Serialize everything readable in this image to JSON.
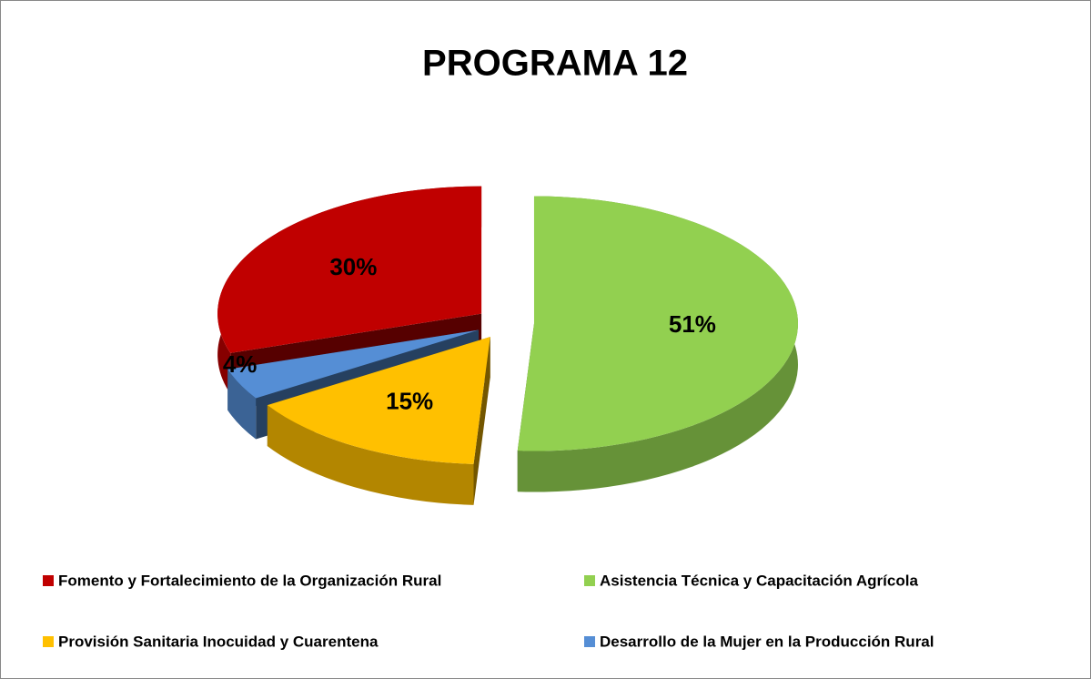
{
  "chart_data": {
    "type": "pie",
    "title": "PROGRAMA 12",
    "categories": [
      "Fomento y Fortalecimiento de la Organización Rural",
      "Asistencia Técnica y Capacitación Agrícola",
      "Provisión Sanitaria Inocuidad y Cuarentena",
      "Desarrollo de la Mujer en la Producción Rural"
    ],
    "values": [
      30,
      51,
      15,
      4
    ],
    "value_labels": [
      "30%",
      "51%",
      "15%",
      "4%"
    ],
    "colors": [
      "#c00000",
      "#92d050",
      "#ffc000",
      "#558ed5"
    ],
    "legend": "bottom"
  }
}
